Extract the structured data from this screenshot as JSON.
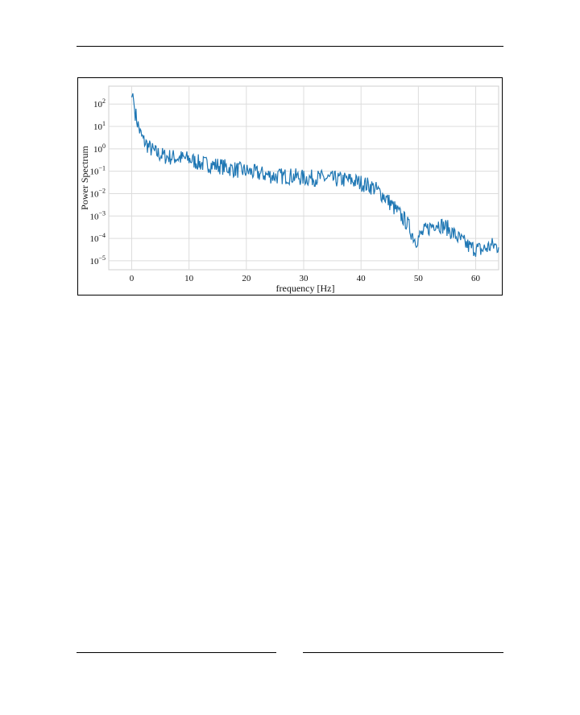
{
  "chart_data": {
    "type": "line",
    "title": "",
    "xlabel": "frequency [Hz]",
    "ylabel": "Power Spectrum",
    "xlim": [
      -4,
      64
    ],
    "ylim_log10": [
      -5.4,
      2.8
    ],
    "yscale": "log",
    "grid": true,
    "x_ticks": [
      0,
      10,
      20,
      30,
      40,
      50,
      60
    ],
    "y_ticks": [
      {
        "value": 100,
        "base": "10",
        "exp": "2"
      },
      {
        "value": 10,
        "base": "10",
        "exp": "1"
      },
      {
        "value": 1,
        "base": "10",
        "exp": "0"
      },
      {
        "value": 0.1,
        "base": "10",
        "exp": "−1"
      },
      {
        "value": 0.01,
        "base": "10",
        "exp": "−2"
      },
      {
        "value": 0.001,
        "base": "10",
        "exp": "−3"
      },
      {
        "value": 0.0001,
        "base": "10",
        "exp": "−4"
      },
      {
        "value": 1e-05,
        "base": "10",
        "exp": "−5"
      }
    ],
    "series": [
      {
        "color": "#1f77b4",
        "x": [
          0,
          0.2,
          0.5,
          1,
          1.5,
          2,
          3,
          4,
          5,
          6,
          8,
          10,
          12,
          15,
          18,
          20,
          22,
          25,
          28,
          30,
          33,
          35,
          38,
          40,
          42,
          44,
          46,
          48,
          49.5,
          51,
          53,
          55,
          57,
          59,
          61,
          63,
          64
        ],
        "y": [
          200,
          300,
          60,
          15,
          5,
          2.5,
          1.2,
          0.7,
          0.55,
          0.45,
          0.4,
          0.35,
          0.22,
          0.18,
          0.12,
          0.1,
          0.08,
          0.06,
          0.06,
          0.05,
          0.05,
          0.045,
          0.04,
          0.03,
          0.02,
          0.008,
          0.002,
          0.0005,
          8e-05,
          0.0002,
          0.0005,
          0.0003,
          0.0001,
          4e-05,
          3e-05,
          5e-05,
          4e-05
        ]
      }
    ]
  }
}
